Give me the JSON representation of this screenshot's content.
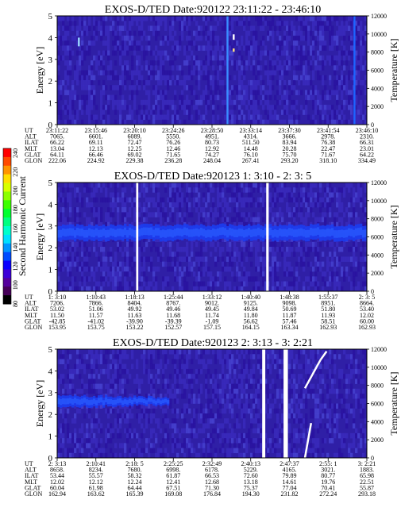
{
  "colorbar": {
    "label": "Second Harmonic Current",
    "ticks": [
      "240",
      "220",
      "200",
      "180",
      "160",
      "140",
      "120",
      "100",
      "80"
    ],
    "colors": [
      "#ff0000",
      "#ff4a00",
      "#ff9400",
      "#ffde00",
      "#d8ff00",
      "#8cff00",
      "#3cff00",
      "#00ff30",
      "#00ff80",
      "#00ffcc",
      "#00e0ff",
      "#0096ff",
      "#004cff",
      "#0a00ff",
      "#3c00d8",
      "#55009c",
      "#460058",
      "#000000"
    ]
  },
  "chart_data": [
    {
      "type": "heatmap",
      "title": "EXOS-D/TED   Date:920122  23:11:22 - 23:46:10",
      "ylabel": "Energy [eV]",
      "ylabel_right": "Temperature [K]",
      "ylim": [
        0,
        5
      ],
      "yticks": [
        "0",
        "1",
        "2",
        "3",
        "4",
        "5"
      ],
      "ylim_right": [
        0,
        12000
      ],
      "yticks_right": [
        "0",
        "2000",
        "4000",
        "6000",
        "8000",
        "10000",
        "12000"
      ],
      "orbit_labels": [
        "UT",
        "ALT",
        "ILAT",
        "MLT",
        "GLAT",
        "GLON"
      ],
      "orbit_columns": [
        [
          "23:11:22",
          "7065.",
          "66.22",
          "13.04",
          "64.11",
          "222.06"
        ],
        [
          "23:15:46",
          "6601.",
          "69.11",
          "12.13",
          "66.46",
          "224.92"
        ],
        [
          "23:20:10",
          "6089.",
          "72.47",
          "12.25",
          "69.02",
          "229.38"
        ],
        [
          "23:24:26",
          "5550.",
          "76.26",
          "12.46",
          "71.65",
          "236.28"
        ],
        [
          "23:28:50",
          "4951.",
          "80.73",
          "12.92",
          "74.27",
          "248.04"
        ],
        [
          "23:33:14",
          "4314.",
          "511.50",
          "14.48",
          "76.10",
          "267.41"
        ],
        [
          "23:37:30",
          "3666.",
          "83.94",
          "20.28",
          "75.70",
          "293.20"
        ],
        [
          "23:41:54",
          "2978.",
          "76.38",
          "22.47",
          "71.67",
          "318.10"
        ],
        [
          "23:46:10",
          "2310.",
          "66.31",
          "23.01",
          "64.22",
          "334.49"
        ]
      ],
      "features": [
        {
          "x": 0.07,
          "y0": 0.72,
          "y1": 0.8,
          "color": "#9ad8ff"
        },
        {
          "x": 0.55,
          "y0": 0.0,
          "y1": 1.0,
          "color": "#3a8cff"
        },
        {
          "x": 0.57,
          "y0": 0.78,
          "y1": 0.83,
          "color": "#ffffff"
        },
        {
          "x": 0.57,
          "y0": 0.67,
          "y1": 0.7,
          "color": "#ffe080"
        },
        {
          "x": 0.96,
          "y0": 0.0,
          "y1": 1.0,
          "color": "#1e64ff"
        }
      ]
    },
    {
      "type": "heatmap",
      "title": "EXOS-D/TED   Date:920123  1: 3:10 - 2: 3: 5",
      "ylabel": "Energy [eV]",
      "ylabel_right": "Temperature [K]",
      "ylim": [
        0,
        5
      ],
      "yticks": [
        "0",
        "1",
        "2",
        "3",
        "4",
        "5"
      ],
      "ylim_right": [
        0,
        12000
      ],
      "yticks_right": [
        "0",
        "2000",
        "4000",
        "6000",
        "8000",
        "10000",
        "12000"
      ],
      "orbit_labels": [
        "UT",
        "ALT",
        "ILAT",
        "MLT",
        "GLAT",
        "GLON"
      ],
      "orbit_columns": [
        [
          "1: 3:10",
          "7206.",
          "53.02",
          "11.50",
          "-42.85",
          "153.95"
        ],
        [
          "1:10:43",
          "7866.",
          "51.06",
          "11.57",
          "-41.02",
          "153.75"
        ],
        [
          "1:18:13",
          "8404.",
          "49.92",
          "11.63",
          "-39.90",
          "153.22"
        ],
        [
          "1:25:44",
          "8767.",
          "49.46",
          "11.68",
          "-39.39",
          "152.57"
        ],
        [
          "1:33:12",
          "9012.",
          "49.45",
          "11.74",
          "-1.09",
          "157.15"
        ],
        [
          "1:40:40",
          "9125.",
          "49.84",
          "11.80",
          "56.62",
          "164.15"
        ],
        [
          "1:48:38",
          "9098.",
          "50.69",
          "11.87",
          "57.46",
          "163.34"
        ],
        [
          "1:55:37",
          "8951.",
          "51.80",
          "11.93",
          "58.51",
          "162.93"
        ],
        [
          "2: 3: 5",
          "8664.",
          "53.40",
          "12.02",
          "60.00",
          "162.93"
        ]
      ],
      "gaps": [
        0.255,
        0.262,
        0.675,
        0.683
      ],
      "band": {
        "center": 2.7,
        "width": 0.7
      }
    },
    {
      "type": "heatmap",
      "title": "EXOS-D/TED   Date:920123  2: 3:13 - 3: 2:21",
      "ylabel": "Energy [eV]",
      "ylabel_right": "Temperature [K]",
      "ylim": [
        0,
        5
      ],
      "yticks": [
        "0",
        "1",
        "2",
        "3",
        "4",
        "5"
      ],
      "ylim_right": [
        0,
        12000
      ],
      "yticks_right": [
        "0",
        "2000",
        "4000",
        "6000",
        "8000",
        "10000",
        "12000"
      ],
      "orbit_labels": [
        "UT",
        "ALT",
        "ILAT",
        "MLT",
        "GLAT",
        "GLON"
      ],
      "orbit_columns": [
        [
          "2: 3:13",
          "8658.",
          "53.44",
          "12.02",
          "60.04",
          "162.94"
        ],
        [
          "2:10:41",
          "8234.",
          "55.57",
          "12.12",
          "61.98",
          "163.62"
        ],
        [
          "2:18: 5",
          "7680.",
          "58.32",
          "12.24",
          "64.44",
          "165.39"
        ],
        [
          "2:25:25",
          "6998.",
          "61.87",
          "12.41",
          "67.51",
          "169.08"
        ],
        [
          "2:32:49",
          "6178.",
          "66.53",
          "12.68",
          "71.30",
          "176.84"
        ],
        [
          "2:40:13",
          "5229.",
          "72.60",
          "13.18",
          "75.37",
          "194.30"
        ],
        [
          "2:47:37",
          "4165.",
          "79.89",
          "14.61",
          "77.04",
          "231.82"
        ],
        [
          "2:55: 1",
          "3021.",
          "80.77",
          "19.76",
          "70.41",
          "272.24"
        ],
        [
          "3: 2:21",
          "1883.",
          "65.98",
          "22.51",
          "55.87",
          "293.18"
        ]
      ],
      "gaps": [
        0.662,
        0.672,
        0.731,
        0.745
      ],
      "band": {
        "center": 2.6,
        "width": 0.55,
        "x_end": 0.36
      },
      "traces": [
        {
          "x0": 0.8,
          "y0": 3.2,
          "x1": 0.85,
          "y1": 4.5,
          "color": "#ffffff"
        },
        {
          "x0": 0.85,
          "y0": 4.5,
          "x1": 0.87,
          "y1": 4.9,
          "color": "#ffffff"
        },
        {
          "x0": 0.8,
          "y0": 0.0,
          "x1": 0.82,
          "y1": 1.6,
          "color": "#ffffff"
        }
      ]
    }
  ]
}
